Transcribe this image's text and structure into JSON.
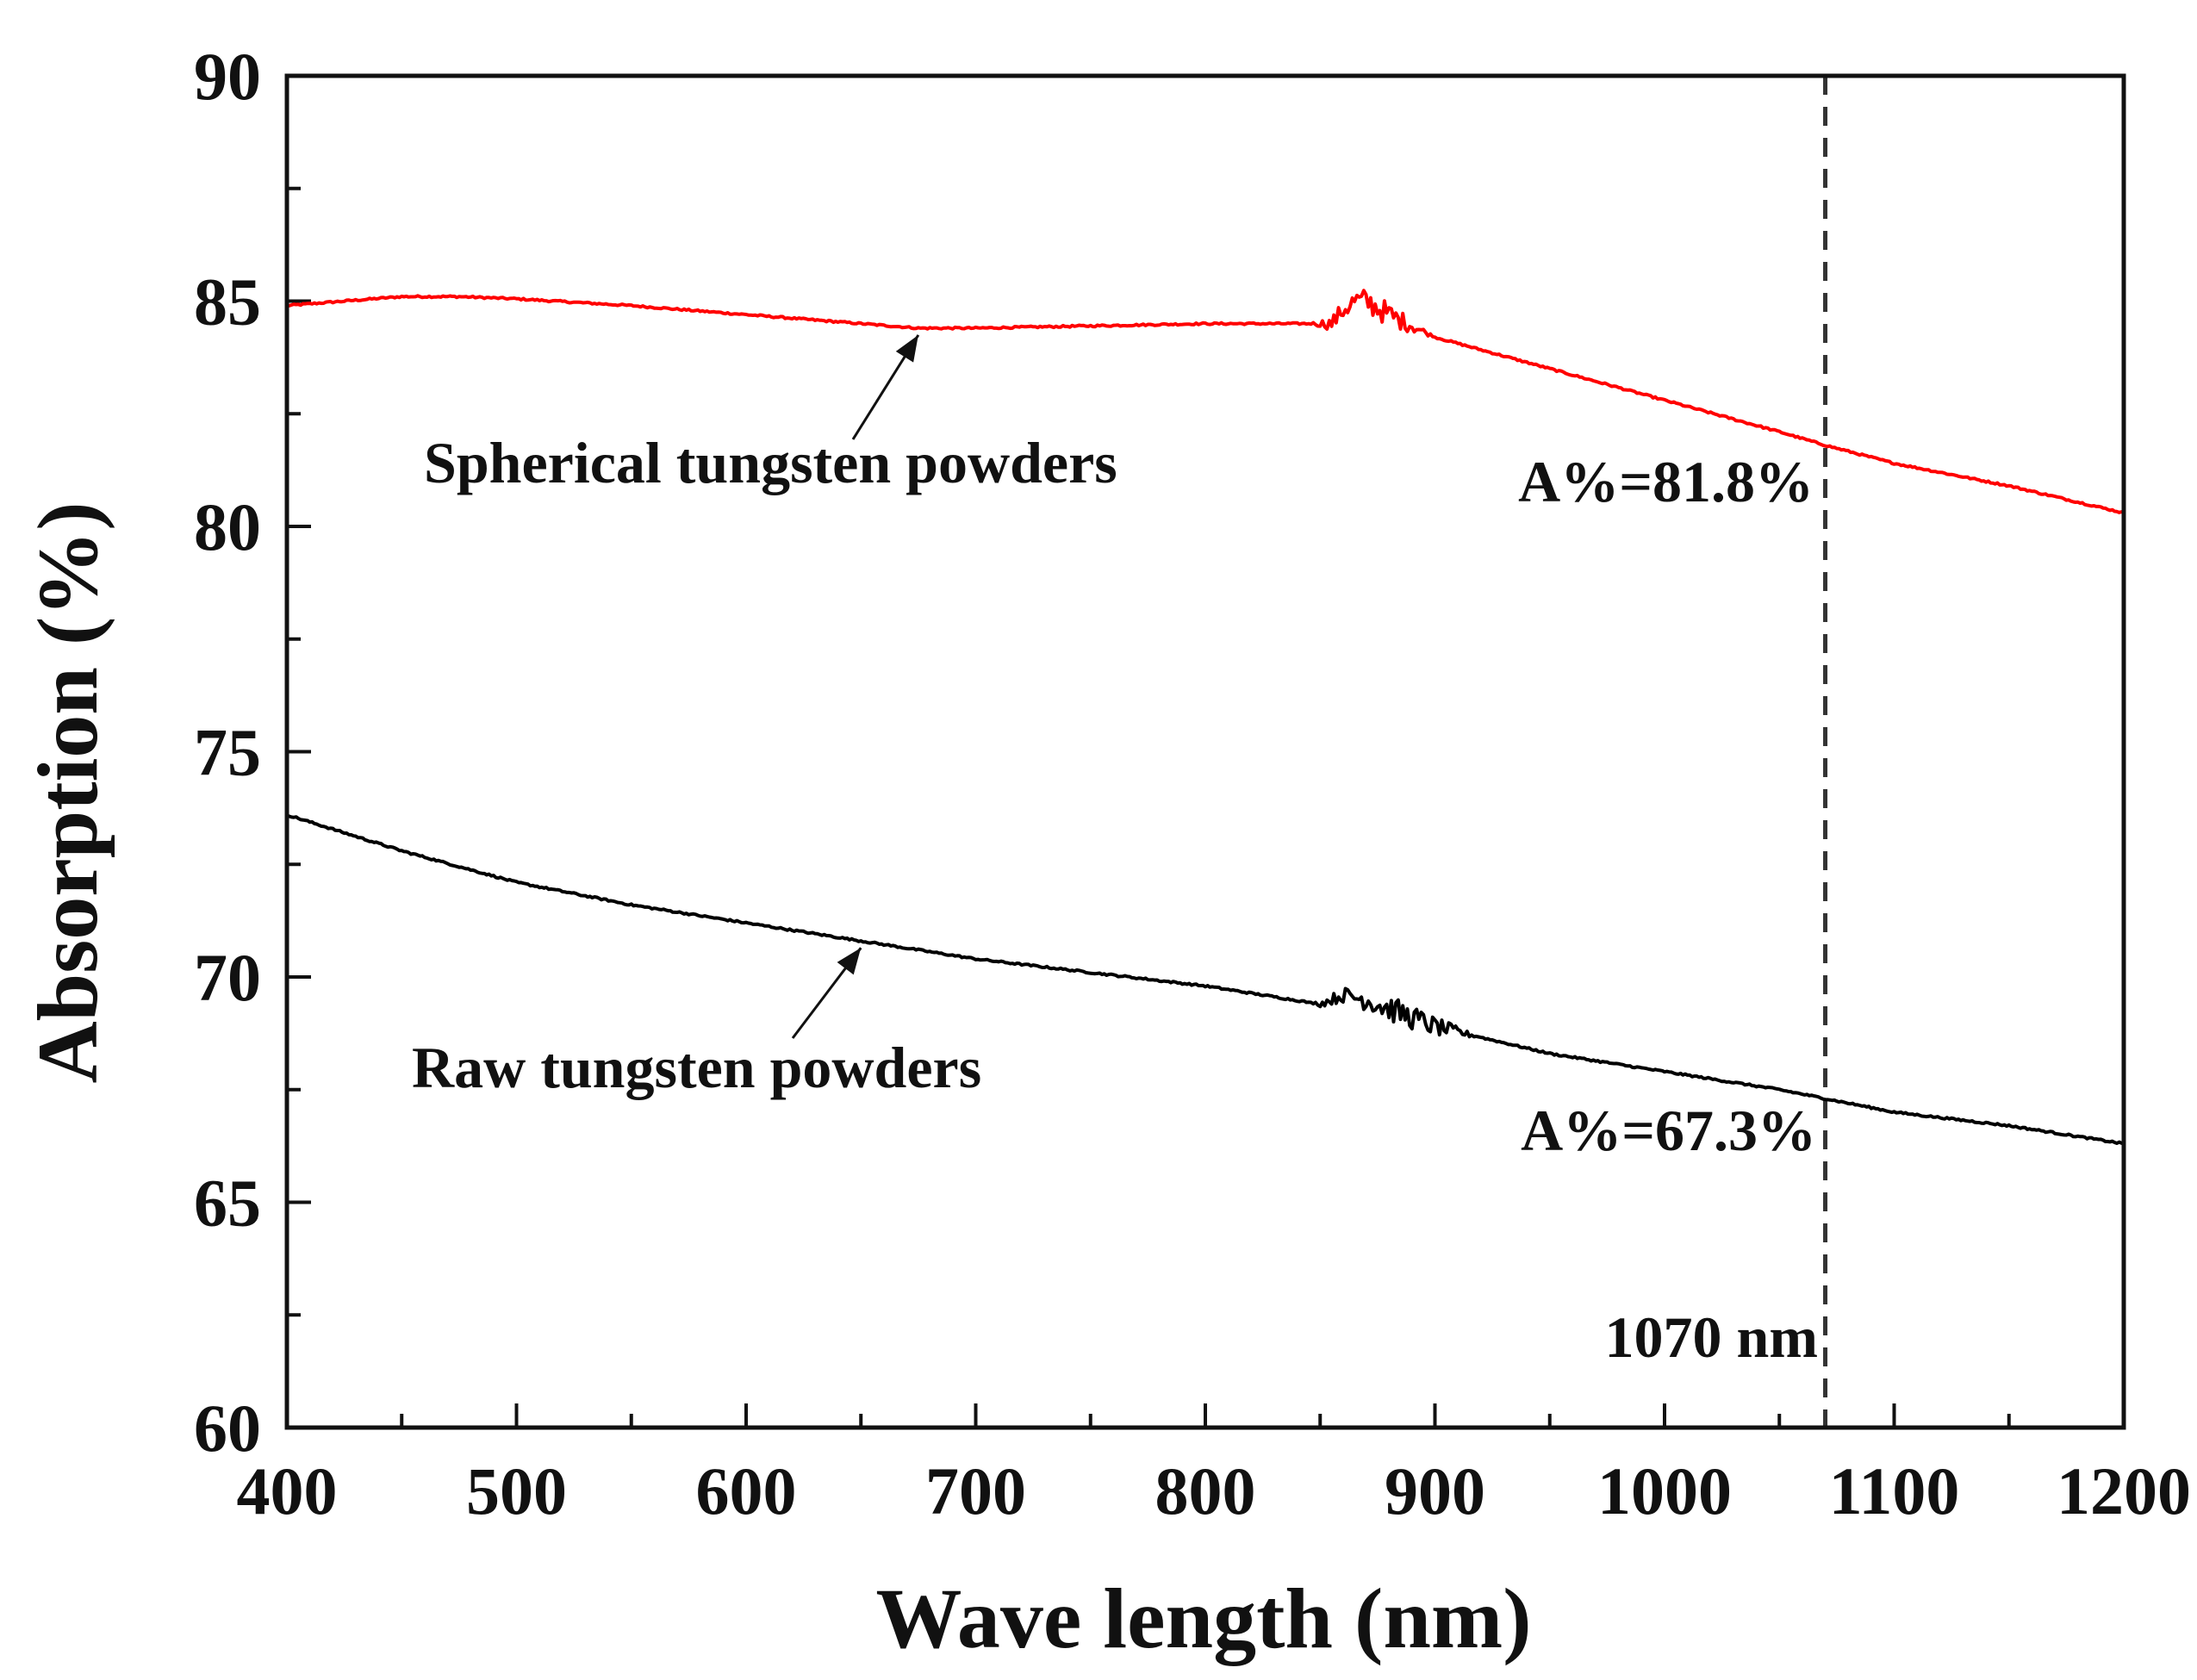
{
  "chart_data": {
    "type": "line",
    "title": "",
    "xlabel": "Wave length (nm)",
    "ylabel": "Absorption (%)",
    "xlim": [
      400,
      1200
    ],
    "ylim": [
      60,
      90
    ],
    "xticks": [
      400,
      500,
      600,
      700,
      800,
      900,
      1000,
      1100,
      1200
    ],
    "yticks": [
      60,
      65,
      70,
      75,
      80,
      85,
      90
    ],
    "x_minor_step": 50,
    "y_minor_step": 2.5,
    "grid": false,
    "series": [
      {
        "name": "Spherical tungsten powders",
        "color": "#ff0000",
        "x": [
          400,
          450,
          475,
          500,
          550,
          600,
          650,
          675,
          700,
          750,
          800,
          830,
          855,
          860,
          865,
          870,
          880,
          900,
          950,
          1000,
          1050,
          1070,
          1100,
          1150,
          1200
        ],
        "y": [
          84.9,
          85.1,
          85.1,
          85.05,
          84.9,
          84.7,
          84.5,
          84.4,
          84.4,
          84.45,
          84.5,
          84.5,
          84.5,
          84.8,
          85.0,
          85.0,
          84.7,
          84.2,
          83.5,
          82.8,
          82.1,
          81.8,
          81.4,
          80.9,
          80.3
        ],
        "noise_range": [
          845,
          900
        ]
      },
      {
        "name": "Raw tungsten powders",
        "color": "#000000",
        "x": [
          400,
          450,
          500,
          550,
          600,
          650,
          700,
          750,
          800,
          850,
          860,
          870,
          880,
          900,
          950,
          1000,
          1050,
          1070,
          1100,
          1150,
          1200
        ],
        "y": [
          73.6,
          72.8,
          72.1,
          71.6,
          71.2,
          70.8,
          70.4,
          70.1,
          69.8,
          69.4,
          69.6,
          69.5,
          69.3,
          68.9,
          68.3,
          67.9,
          67.5,
          67.3,
          67.0,
          66.7,
          66.3
        ],
        "noise_range": [
          845,
          920
        ]
      }
    ],
    "reference_line": {
      "x": 1070,
      "label": "1070 nm",
      "style": "dashed"
    },
    "annotations": [
      {
        "text": "Spherical tungsten powders",
        "arrow_to": [
          675,
          84.4
        ],
        "series": "Spherical tungsten powders"
      },
      {
        "text": "Raw tungsten powders",
        "arrow_to": [
          650,
          70.8
        ],
        "series": "Raw tungsten powders"
      },
      {
        "text": "A%=81.8%",
        "value": 81.8,
        "series": "Spherical tungsten powders"
      },
      {
        "text": "A%=67.3%",
        "value": 67.3,
        "series": "Raw tungsten powders"
      }
    ]
  }
}
